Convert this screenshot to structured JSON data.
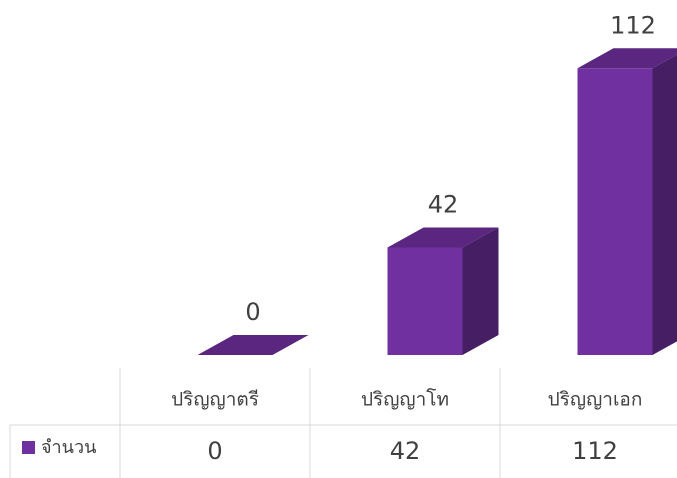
{
  "chart_data": {
    "type": "bar3d",
    "categories": [
      "ปริญญาตรี",
      "ปริญญาโท",
      "ปริญญาเอก"
    ],
    "series": [
      {
        "name": "จำนวน",
        "color": "#7030a0",
        "values": [
          0,
          42,
          112
        ]
      }
    ],
    "data_table": true
  }
}
